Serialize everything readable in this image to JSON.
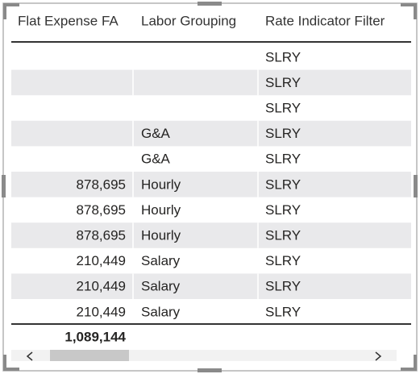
{
  "table": {
    "headers": [
      "Flat Expense FA",
      "Labor Grouping",
      "Rate Indicator Filter"
    ],
    "rows": [
      [
        null,
        null,
        "SLRY"
      ],
      [
        null,
        null,
        "SLRY"
      ],
      [
        null,
        null,
        "SLRY"
      ],
      [
        null,
        "G&A",
        "SLRY"
      ],
      [
        null,
        "G&A",
        "SLRY"
      ],
      [
        "878,695",
        "Hourly",
        "SLRY"
      ],
      [
        "878,695",
        "Hourly",
        "SLRY"
      ],
      [
        "878,695",
        "Hourly",
        "SLRY"
      ],
      [
        "210,449",
        "Salary",
        "SLRY"
      ],
      [
        "210,449",
        "Salary",
        "SLRY"
      ],
      [
        "210,449",
        "Salary",
        "SLRY"
      ]
    ],
    "total": "1,089,144"
  }
}
